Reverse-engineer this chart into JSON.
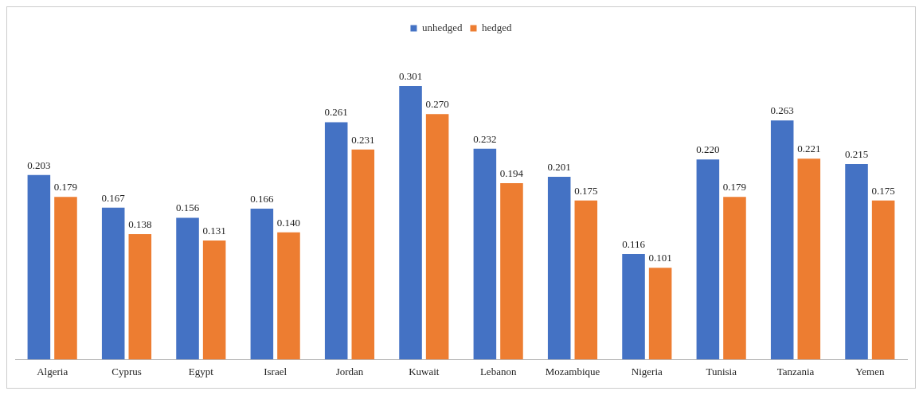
{
  "chart_data": {
    "type": "bar",
    "categories": [
      "Algeria",
      "Cyprus",
      "Egypt",
      "Israel",
      "Jordan",
      "Kuwait",
      "Lebanon",
      "Mozambique",
      "Nigeria",
      "Tunisia",
      "Tanzania",
      "Yemen"
    ],
    "series": [
      {
        "name": "unhedged",
        "color": "#4472c4",
        "values": [
          0.203,
          0.167,
          0.156,
          0.166,
          0.261,
          0.301,
          0.232,
          0.201,
          0.116,
          0.22,
          0.263,
          0.215
        ],
        "value_labels": [
          "0.203",
          "0.167",
          "0.156",
          "0.166",
          "0.261",
          "0.301",
          "0.232",
          "0.201",
          "0.116",
          "0.220",
          "0.263",
          "0.215"
        ]
      },
      {
        "name": "hedged",
        "color": "#ed7d31",
        "values": [
          0.179,
          0.138,
          0.131,
          0.14,
          0.231,
          0.27,
          0.194,
          0.175,
          0.101,
          0.179,
          0.221,
          0.175
        ],
        "value_labels": [
          "0.179",
          "0.138",
          "0.131",
          "0.140",
          "0.231",
          "0.270",
          "0.194",
          "0.175",
          "0.101",
          "0.179",
          "0.221",
          "0.175"
        ]
      }
    ],
    "legend": "top",
    "grid": false
  }
}
